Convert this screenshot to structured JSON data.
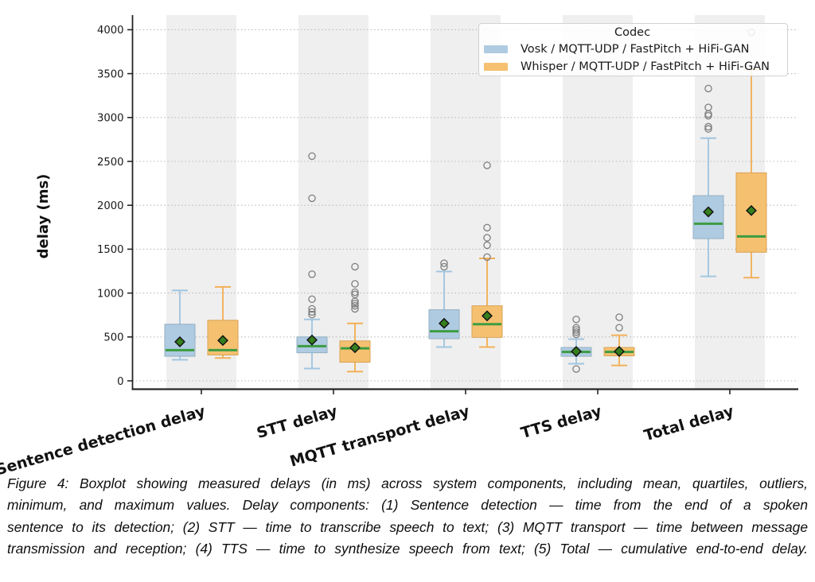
{
  "figure": {
    "caption_lines": [
      "Figure 4: Boxplot showing measured delays (in ms) across system components, including mean, quartiles, outliers,",
      "minimum, and maximum values. Delay components: (1) Sentence detection — time from the end of a spoken",
      "sentence to its detection; (2) STT — time to transcribe speech to text; (3) MQTT transport — time between message",
      "transmission and reception; (4) TTS — time to synthesize speech from text; (5) Total — cumulative end-to-end delay."
    ]
  },
  "chart_data": {
    "type": "boxplot",
    "title": "",
    "xlabel": "",
    "ylabel": "delay (ms)",
    "ylim": [
      -95,
      4165
    ],
    "yticks": [
      0,
      500,
      1000,
      1500,
      2000,
      2500,
      3000,
      3500,
      4000
    ],
    "grid": "horizontal-dotted",
    "categories": [
      "Sentence detection delay",
      "STT delay",
      "MQTT transport delay",
      "TTS delay",
      "Total delay"
    ],
    "legend": {
      "title": "Codec",
      "position": "upper right",
      "entries": [
        {
          "label": "Vosk / MQTT-UDP / FastPitch + HiFi-GAN",
          "color": "#aecbe2"
        },
        {
          "label": "Whisper / MQTT-UDP / FastPitch + HiFi-GAN",
          "color": "#f5c170"
        }
      ]
    },
    "series": [
      {
        "name": "Vosk / MQTT-UDP / FastPitch + HiFi-GAN",
        "color": "#aecbe2",
        "line_color": "#a2c6e0",
        "edge_color": "#95afc2",
        "boxes": [
          {
            "category": "Sentence detection delay",
            "whislo": 240,
            "q1": 280,
            "med": 350,
            "mean": 445,
            "q3": 645,
            "whishi": 1030,
            "outliers": []
          },
          {
            "category": "STT delay",
            "whislo": 140,
            "q1": 320,
            "med": 395,
            "mean": 465,
            "q3": 500,
            "whishi": 700,
            "outliers": [
              755,
              785,
              820,
              930,
              1215,
              2080,
              2560
            ]
          },
          {
            "category": "MQTT transport delay",
            "whislo": 385,
            "q1": 480,
            "med": 565,
            "mean": 655,
            "q3": 810,
            "whishi": 1245,
            "outliers": [
              1300,
              1340
            ]
          },
          {
            "category": "TTS delay",
            "whislo": 195,
            "q1": 280,
            "med": 330,
            "mean": 335,
            "q3": 380,
            "whishi": 475,
            "outliers": [
              135,
              530,
              555,
              580,
              605,
              700
            ]
          },
          {
            "category": "Total delay",
            "whislo": 1190,
            "q1": 1620,
            "med": 1790,
            "mean": 1925,
            "q3": 2110,
            "whishi": 2765,
            "outliers": [
              2870,
              2895,
              3020,
              3040,
              3115,
              3330
            ]
          }
        ]
      },
      {
        "name": "Whisper / MQTT-UDP / FastPitch + HiFi-GAN",
        "color": "#f5c170",
        "line_color": "#f2b058",
        "edge_color": "#d9a254",
        "boxes": [
          {
            "category": "Sentence detection delay",
            "whislo": 260,
            "q1": 295,
            "med": 350,
            "mean": 460,
            "q3": 690,
            "whishi": 1070,
            "outliers": []
          },
          {
            "category": "STT delay",
            "whislo": 105,
            "q1": 212,
            "med": 370,
            "mean": 378,
            "q3": 455,
            "whishi": 655,
            "outliers": [
              820,
              855,
              880,
              905,
              985,
              1010,
              1105,
              1300
            ]
          },
          {
            "category": "MQTT transport delay",
            "whislo": 385,
            "q1": 495,
            "med": 645,
            "mean": 740,
            "q3": 855,
            "whishi": 1395,
            "outliers": [
              1410,
              1545,
              1630,
              1745,
              2455
            ]
          },
          {
            "category": "TTS delay",
            "whislo": 175,
            "q1": 285,
            "med": 330,
            "mean": 335,
            "q3": 380,
            "whishi": 520,
            "outliers": [
              605,
              725
            ]
          },
          {
            "category": "Total delay",
            "whislo": 1175,
            "q1": 1465,
            "med": 1645,
            "mean": 1940,
            "q3": 2370,
            "whishi": 3550,
            "outliers": [
              3970
            ]
          }
        ]
      }
    ],
    "style": {
      "median_color": "#3d9c41",
      "mean_fill": "#35801e",
      "mean_edge": "#141414",
      "outlier_color": "#7f7f7f",
      "band_color": "#efefef",
      "grid_color": "#bcbcbc",
      "spine_color": "#262626",
      "tick_label_color": "#1a1a1a"
    }
  }
}
